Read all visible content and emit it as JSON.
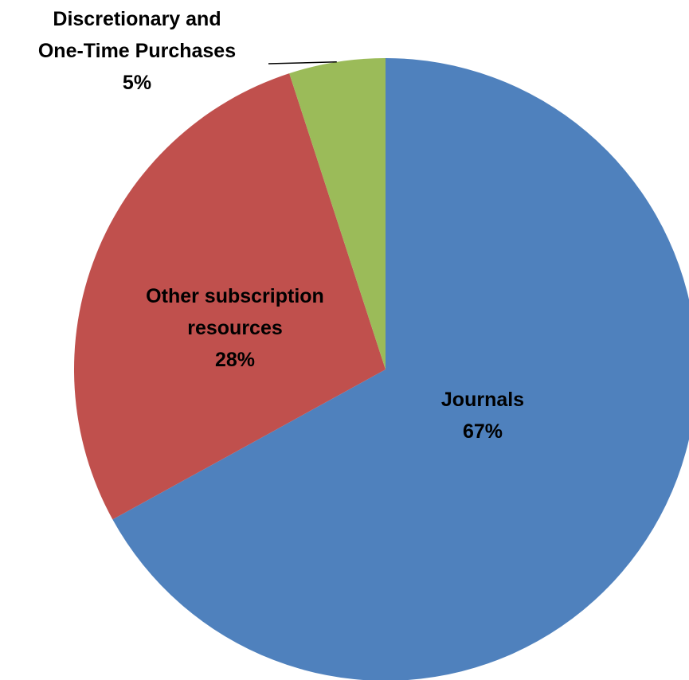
{
  "chart_data": {
    "type": "pie",
    "start_angle": "12 o'clock",
    "direction": "clockwise",
    "slices": [
      {
        "label_lines": [
          "Journals"
        ],
        "percent_label": "67%",
        "value": 67,
        "color": "#4f81bd"
      },
      {
        "label_lines": [
          "Other subscription",
          "resources"
        ],
        "percent_label": "28%",
        "value": 28,
        "color": "#c0504d"
      },
      {
        "label_lines": [
          "Discretionary and",
          "One-Time Purchases"
        ],
        "percent_label": "5%",
        "value": 5,
        "color": "#9bbb59"
      }
    ],
    "legend": "none"
  }
}
